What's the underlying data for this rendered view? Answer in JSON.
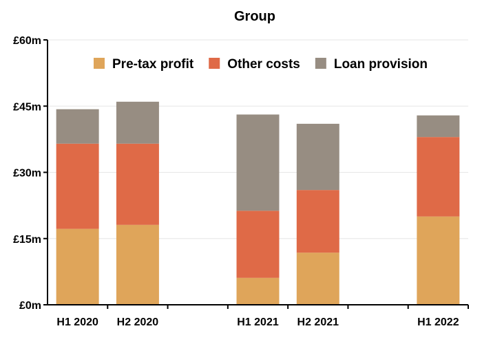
{
  "chart_data": {
    "type": "bar",
    "stacked": true,
    "title": "Group",
    "xlabel": "",
    "ylabel": "",
    "categories": [
      "H1 2020",
      "H2 2020",
      "",
      "H1 2021",
      "H2 2021",
      "",
      "H1 2022"
    ],
    "series": [
      {
        "name": "Pre-tax profit",
        "color": "#dfa55a",
        "values": [
          17.2,
          18.1,
          null,
          6.1,
          11.8,
          null,
          20.0
        ]
      },
      {
        "name": "Other costs",
        "color": "#df6a47",
        "values": [
          19.3,
          18.4,
          null,
          15.2,
          14.2,
          null,
          18.0
        ]
      },
      {
        "name": "Loan provision",
        "color": "#978d82",
        "values": [
          7.8,
          9.5,
          null,
          21.8,
          15.0,
          null,
          4.9
        ]
      }
    ],
    "ylim": [
      0,
      60
    ],
    "yticks": [
      0,
      15,
      30,
      45,
      60
    ],
    "ytick_labels": [
      "£0m",
      "£15m",
      "£30m",
      "£45m",
      "£60m"
    ],
    "grid": true,
    "legend_position": "top"
  }
}
